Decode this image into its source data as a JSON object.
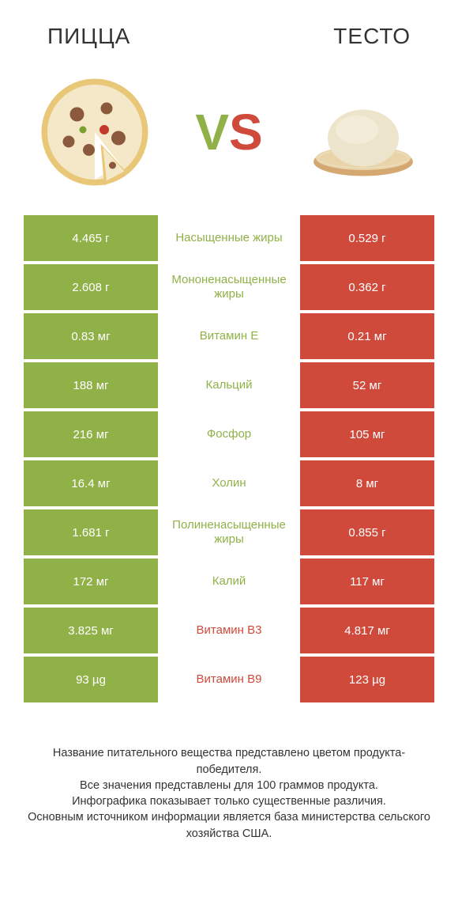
{
  "colors": {
    "green": "#90b148",
    "red": "#d04a3c",
    "green_text": "#90b148",
    "red_text": "#d04a3c",
    "bg": "#ffffff"
  },
  "header": {
    "left": "ПИЦЦА",
    "right": "ТЕСТО",
    "vs": "VS"
  },
  "fonts": {
    "title_size": 28,
    "vs_size": 64,
    "cell_size": 15,
    "footer_size": 14.5
  },
  "rows": [
    {
      "left": "4.465 г",
      "mid": "Насыщенные жиры",
      "right": "0.529 г",
      "winner": "left"
    },
    {
      "left": "2.608 г",
      "mid": "Мононенасыщенные жиры",
      "right": "0.362 г",
      "winner": "left"
    },
    {
      "left": "0.83 мг",
      "mid": "Витамин E",
      "right": "0.21 мг",
      "winner": "left"
    },
    {
      "left": "188 мг",
      "mid": "Кальций",
      "right": "52 мг",
      "winner": "left"
    },
    {
      "left": "216 мг",
      "mid": "Фосфор",
      "right": "105 мг",
      "winner": "left"
    },
    {
      "left": "16.4 мг",
      "mid": "Холин",
      "right": "8 мг",
      "winner": "left"
    },
    {
      "left": "1.681 г",
      "mid": "Полиненасыщенные жиры",
      "right": "0.855 г",
      "winner": "left"
    },
    {
      "left": "172 мг",
      "mid": "Калий",
      "right": "117 мг",
      "winner": "left"
    },
    {
      "left": "3.825 мг",
      "mid": "Витамин B3",
      "right": "4.817 мг",
      "winner": "right"
    },
    {
      "left": "93 µg",
      "mid": "Витамин B9",
      "right": "123 µg",
      "winner": "right"
    }
  ],
  "footer": {
    "line1": "Название питательного вещества представлено цветом продукта-победителя.",
    "line2": "Все значения представлены для 100 граммов продукта.",
    "line3": "Инфографика показывает только существенные различия.",
    "line4": "Основным источником информации является база министерства сельского хозяйства США."
  }
}
